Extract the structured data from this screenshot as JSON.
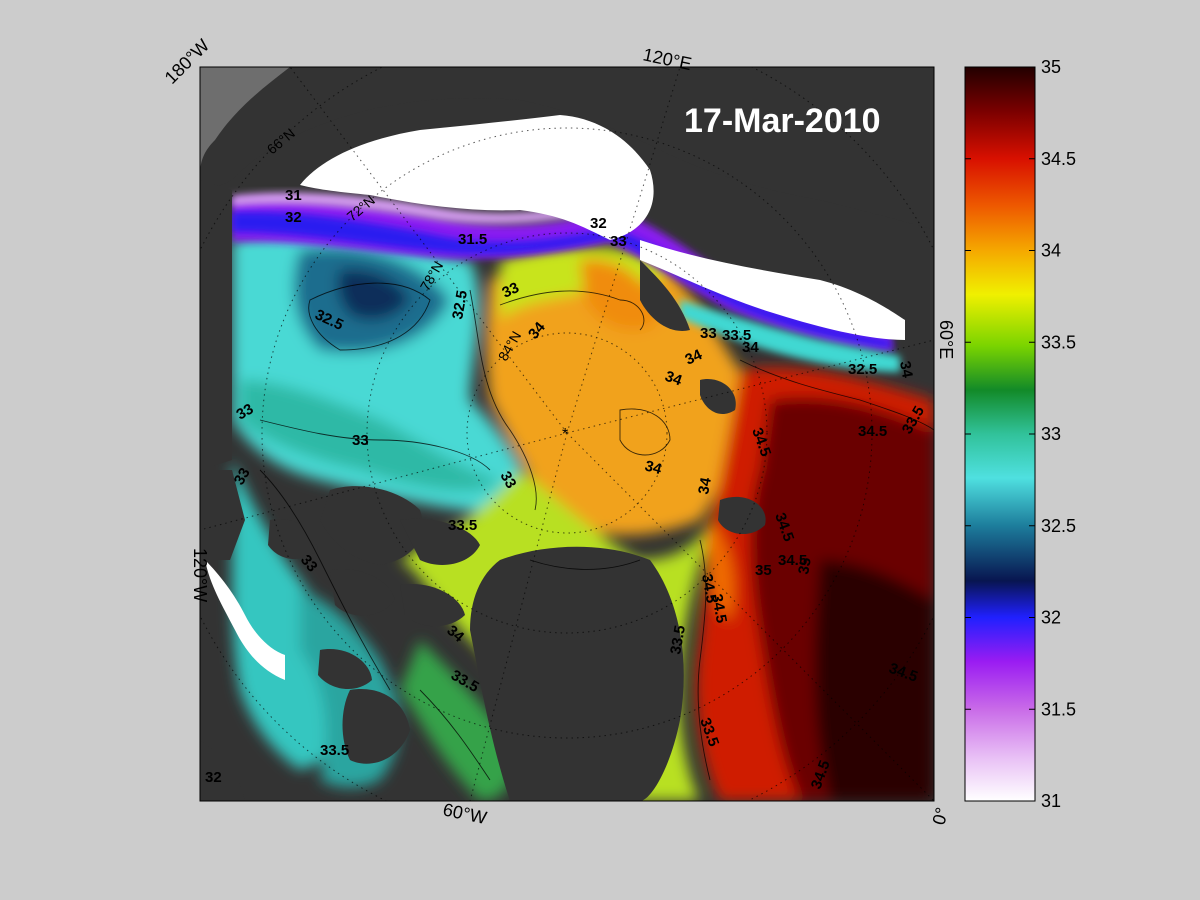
{
  "title": "17-Mar-2010",
  "longitude_labels": {
    "top_left": "180°W",
    "top": "120°E",
    "right": "60°E",
    "left": "120°W",
    "bottom": "60°W",
    "bottom_right": "0°"
  },
  "latitude_labels": [
    "66°N",
    "72°N",
    "78°N",
    "84°N"
  ],
  "colorbar": {
    "min": 31,
    "max": 35,
    "ticks": [
      "31",
      "31.5",
      "32",
      "32.5",
      "33",
      "33.5",
      "34",
      "34.5",
      "35"
    ]
  },
  "contour_levels": [
    "31",
    "31.5",
    "32",
    "32.5",
    "33",
    "33.5",
    "34",
    "34.5"
  ],
  "contour_labels": [
    "31",
    "32",
    "31.5",
    "32",
    "33",
    "33",
    "33.5",
    "34",
    "32.5",
    "32.5",
    "33",
    "33",
    "33",
    "33",
    "33.5",
    "33",
    "32.5",
    "33",
    "34",
    "34",
    "34",
    "34",
    "34",
    "34.5",
    "34.5",
    "34.5",
    "34.5",
    "34.5",
    "33.5",
    "33.5",
    "33.5",
    "34",
    "34",
    "33.5",
    "34.5",
    "34.5",
    "34.5",
    "35",
    "35",
    "33.5",
    "32"
  ]
}
